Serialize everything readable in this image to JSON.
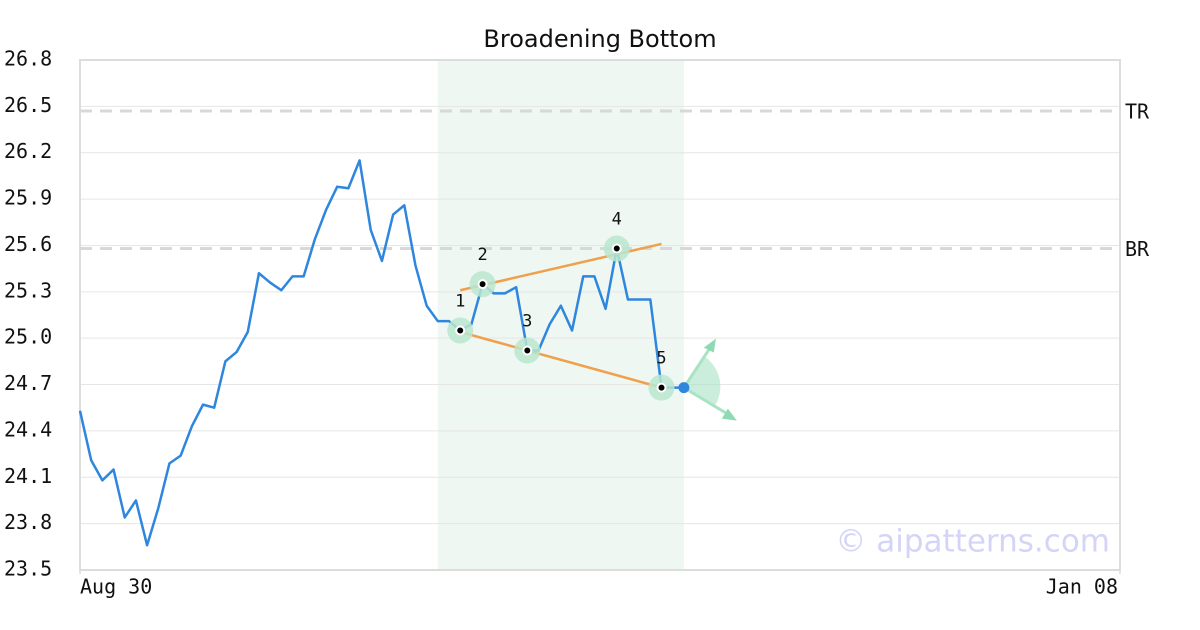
{
  "chart_data": {
    "type": "line",
    "title": "Broadening Bottom",
    "x": [
      0,
      1,
      2,
      3,
      4,
      5,
      6,
      7,
      8,
      9,
      10,
      11,
      12,
      13,
      14,
      15,
      16,
      17,
      18,
      19,
      20,
      21,
      22,
      23,
      24,
      25,
      26,
      27,
      28,
      29,
      30,
      31,
      32,
      33,
      34,
      35,
      36,
      37,
      38,
      39,
      40,
      41,
      42,
      43,
      44,
      45,
      46,
      47,
      48,
      49,
      50,
      51,
      52,
      53,
      54
    ],
    "values": [
      24.53,
      24.21,
      24.08,
      24.15,
      23.84,
      23.95,
      23.66,
      23.9,
      24.19,
      24.24,
      24.43,
      24.57,
      24.55,
      24.85,
      24.91,
      25.04,
      25.42,
      25.36,
      25.31,
      25.4,
      25.4,
      25.64,
      25.83,
      25.98,
      25.97,
      26.15,
      25.7,
      25.5,
      25.8,
      25.86,
      25.47,
      25.21,
      25.11,
      25.11,
      25.05,
      25.09,
      25.35,
      25.29,
      25.29,
      25.33,
      24.92,
      24.92,
      25.09,
      25.21,
      25.05,
      25.4,
      25.4,
      25.19,
      25.58,
      25.25,
      25.25,
      25.25,
      24.68,
      24.68,
      24.68
    ],
    "color": "#2e86de",
    "xlim": [
      0,
      93
    ],
    "xticks": [
      {
        "value": 0,
        "label": "Aug 30"
      },
      {
        "value": 93,
        "label": "Jan 08"
      }
    ],
    "ylim": [
      23.5,
      26.8
    ],
    "yticks": [
      23.5,
      23.8,
      24.1,
      24.4,
      24.7,
      {
        "value": 25,
        "label": "25.0"
      },
      25.3,
      25.6,
      25.9,
      26.2,
      26.5,
      26.8
    ],
    "grid": true,
    "highlight": {
      "x": [
        32,
        54
      ],
      "color": "#eef7f2"
    },
    "reference_lines": [
      {
        "label": "TR",
        "value": 26.47
      },
      {
        "label": "BR",
        "value": 25.58
      }
    ],
    "trendlines": [
      {
        "x": [
          34,
          52
        ],
        "values": [
          25.31,
          25.61
        ],
        "color": "#f0a04b"
      },
      {
        "x": [
          34,
          52
        ],
        "values": [
          25.04,
          24.68
        ],
        "color": "#f0a04b"
      }
    ],
    "pivots": [
      {
        "label": "1",
        "x": 34,
        "value": 25.05
      },
      {
        "label": "2",
        "x": 36,
        "value": 25.35
      },
      {
        "label": "3",
        "x": 40,
        "value": 24.92
      },
      {
        "label": "4",
        "x": 48,
        "value": 25.58
      },
      {
        "label": "5",
        "x": 52,
        "value": 24.68
      }
    ],
    "watermark": "© aipatterns.com"
  }
}
